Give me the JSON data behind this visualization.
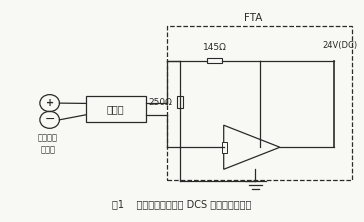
{
  "bg_color": "#f8f8f4",
  "line_color": "#2a2a2a",
  "title": "图1    智能压力变送器与 DCS 现场的连接回路",
  "fta_label": "FTA",
  "voltage_label": "24V(DC)",
  "r1_label": "145Ω",
  "r2_label": "250Ω",
  "transmitter_label": "智能压力\n变送器",
  "barrier_label": "安全栅",
  "fig_width": 3.64,
  "fig_height": 2.22,
  "dpi": 100
}
